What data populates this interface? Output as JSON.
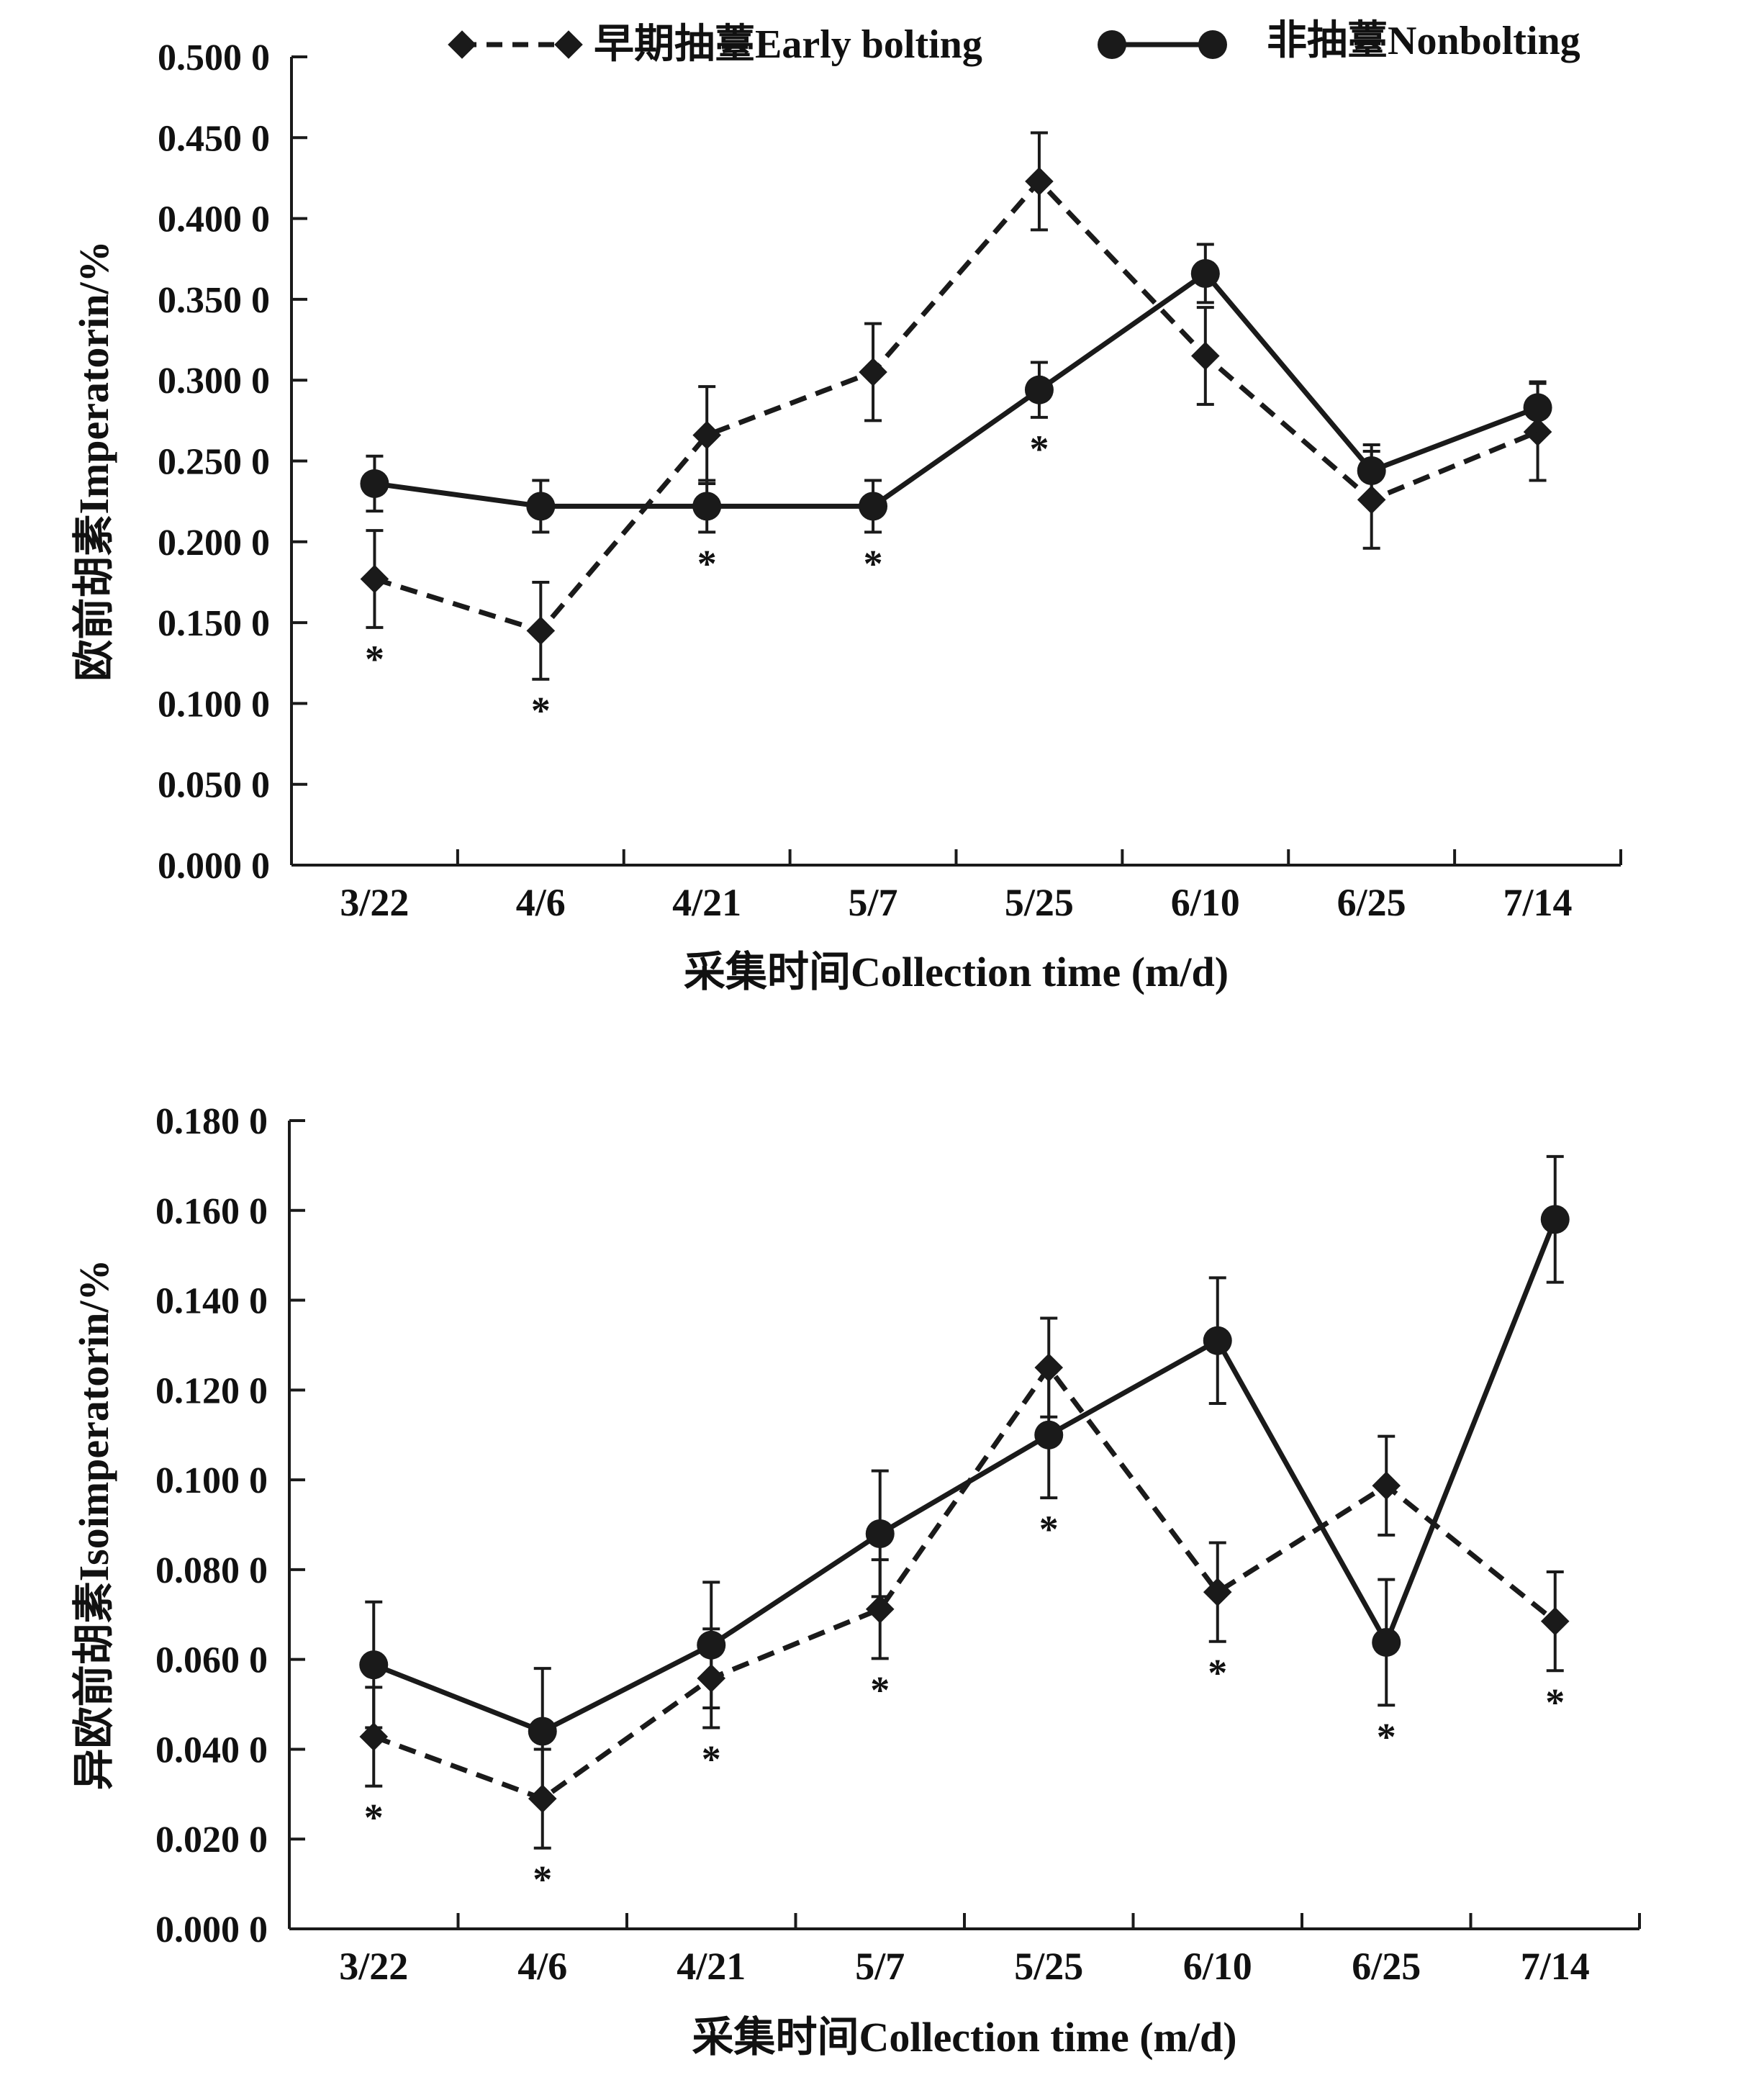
{
  "legend": {
    "early": "早期抽薹Early bolting",
    "non": "非抽薹Nonbolting"
  },
  "colors": {
    "line": "#1a1a1a"
  },
  "chart_data": [
    {
      "type": "line",
      "ylabel": "欧前胡素Imperatorin/%",
      "xlabel": "采集时间Collection time (m/d)",
      "categories": [
        "3/22",
        "4/6",
        "4/21",
        "5/7",
        "5/25",
        "6/10",
        "6/25",
        "7/14"
      ],
      "ylim": [
        0,
        0.5
      ],
      "yticks": [
        "0.000 0",
        "0.050 0",
        "0.100 0",
        "0.150 0",
        "0.200 0",
        "0.250 0",
        "0.300 0",
        "0.350 0",
        "0.400 0",
        "0.450 0",
        "0.500 0"
      ],
      "series": [
        {
          "name": "早期抽薹Early bolting",
          "style": "dashed",
          "marker": "diamond",
          "values": [
            0.177,
            0.145,
            0.266,
            0.305,
            0.423,
            0.315,
            0.226,
            0.268
          ],
          "errors": [
            0.03,
            0.03,
            0.03,
            0.03,
            0.03,
            0.03,
            0.03,
            0.03
          ]
        },
        {
          "name": "非抽薹Nonbolting",
          "style": "solid",
          "marker": "circle",
          "values": [
            0.236,
            0.222,
            0.222,
            0.222,
            0.294,
            0.366,
            0.244,
            0.283
          ],
          "errors": [
            0.017,
            0.016,
            0.016,
            0.016,
            0.017,
            0.018,
            0.016,
            0.016
          ]
        }
      ],
      "significance": [
        "*",
        "*",
        "*",
        "*",
        "*",
        "",
        "",
        ""
      ]
    },
    {
      "type": "line",
      "ylabel": "异欧前胡素Isoimperatorin/%",
      "xlabel": "采集时间Collection time (m/d)",
      "categories": [
        "3/22",
        "4/6",
        "4/21",
        "5/7",
        "5/25",
        "6/10",
        "6/25",
        "7/14"
      ],
      "ylim": [
        0,
        0.18
      ],
      "yticks": [
        "0.000 0",
        "0.020 0",
        "0.040 0",
        "0.060 0",
        "0.080 0",
        "0.100 0",
        "0.120 0",
        "0.140 0",
        "0.160 0",
        "0.180 0"
      ],
      "series": [
        {
          "name": "早期抽薹Early bolting",
          "style": "dashed",
          "marker": "diamond",
          "values": [
            0.0428,
            0.029,
            0.0558,
            0.0712,
            0.125,
            0.075,
            0.0987,
            0.0685
          ],
          "errors": [
            0.011,
            0.011,
            0.011,
            0.011,
            0.011,
            0.011,
            0.011,
            0.011
          ]
        },
        {
          "name": "非抽薹Nonbolting",
          "style": "solid",
          "marker": "circle",
          "values": [
            0.0588,
            0.044,
            0.0632,
            0.088,
            0.11,
            0.131,
            0.0638,
            0.158
          ],
          "errors": [
            0.014,
            0.014,
            0.014,
            0.014,
            0.014,
            0.014,
            0.014,
            0.014
          ]
        }
      ],
      "significance": [
        "*",
        "*",
        "*",
        "*",
        "*",
        "*",
        "*",
        "*"
      ]
    }
  ]
}
